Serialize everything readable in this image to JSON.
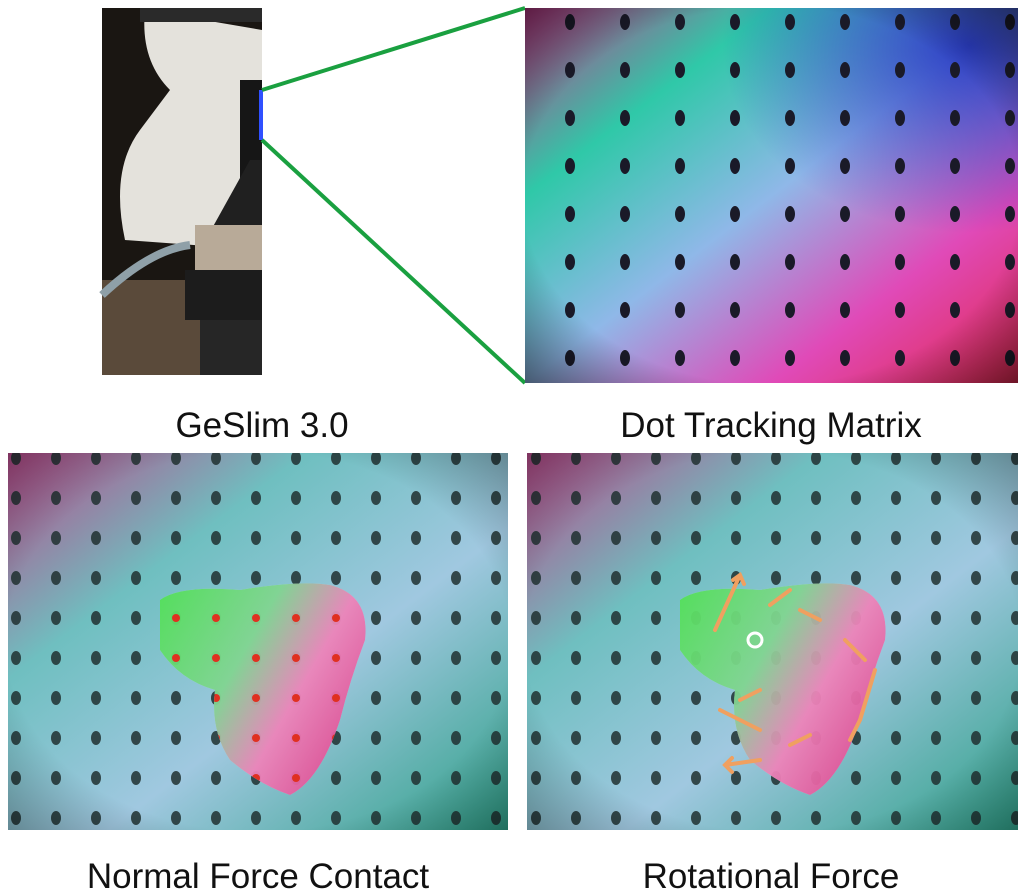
{
  "panels": [
    {
      "caption": "GeSlim 3.0"
    },
    {
      "caption": "Dot Tracking Matrix"
    },
    {
      "caption": "Normal Force Contact"
    },
    {
      "caption": "Rotational Force"
    }
  ]
}
